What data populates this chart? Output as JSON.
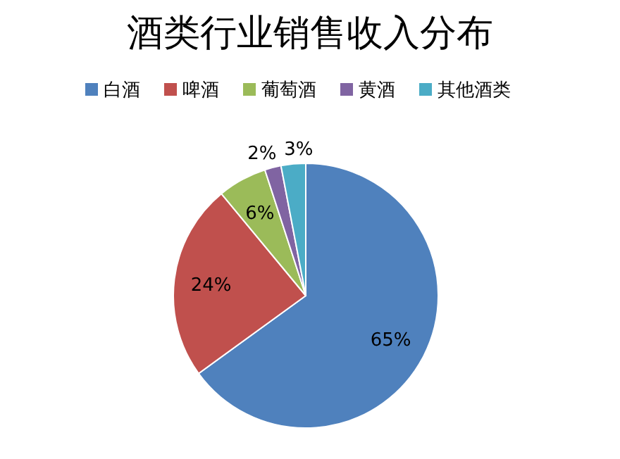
{
  "chart_data": {
    "type": "pie",
    "title": "酒类行业销售收入分布",
    "categories": [
      "白酒",
      "啤酒",
      "葡萄酒",
      "黄酒",
      "其他酒类"
    ],
    "values": [
      65,
      24,
      6,
      2,
      3
    ],
    "value_labels": [
      "65%",
      "24%",
      "6%",
      "2%",
      "3%"
    ],
    "colors": [
      "#4f81bd",
      "#c0504d",
      "#9bbb59",
      "#8064a2",
      "#4bacc6"
    ],
    "legend": "top"
  }
}
